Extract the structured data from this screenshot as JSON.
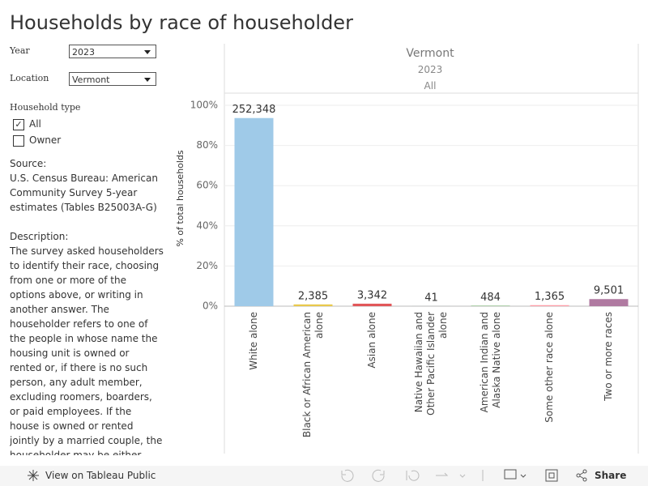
{
  "header": {
    "title": "Households by race of householder"
  },
  "filters": {
    "year_label": "Year",
    "year_value": "2023",
    "location_label": "Location",
    "location_value": "Vermont",
    "household_type_label": "Household type",
    "options": [
      "All",
      "Owner"
    ]
  },
  "source": {
    "label": "Source:",
    "text": "U.S. Census Bureau: American Community Survey 5-year estimates (Tables B25003A-G)"
  },
  "description": {
    "label": "Description:",
    "text": "The survey asked householders to identify their race, choosing from one or more of the options above, or writing in another answer. The householder refers to one of the people in whose name the housing unit is owned or rented or, if there is no such person, any adult member, excluding roomers, boarders, or paid employees. If the house is owned or rented jointly by a married couple, the householder may be either partner. Since there is only one householder"
  },
  "chart_data": {
    "type": "bar",
    "header": [
      "Vermont",
      "2023",
      "All"
    ],
    "y_label": "% of total households",
    "categories": [
      "White alone",
      "Black or African American alone",
      "Asian alone",
      "Native Hawaiian and Other Pacific Islander alone",
      "American Indian and Alaska Native alone",
      "Some other race alone",
      "Two or more races"
    ],
    "values": [
      93.65,
      0.89,
      1.24,
      0.02,
      0.18,
      0.51,
      3.53
    ],
    "count_labels": [
      "252,348",
      "2,385",
      "3,342",
      "41",
      "484",
      "1,365",
      "9,501"
    ],
    "colors": [
      "#9fcae8",
      "#e9c84c",
      "#e15759",
      "#76b7b2",
      "#59a14f",
      "#ff9da7",
      "#b07aa1"
    ],
    "ylim": [
      0,
      100
    ],
    "yticks": [
      {
        "value": 0,
        "label": "0%"
      },
      {
        "value": 20,
        "label": "20%"
      },
      {
        "value": 40,
        "label": "40%"
      },
      {
        "value": 60,
        "label": "60%"
      },
      {
        "value": 80,
        "label": "80%"
      },
      {
        "value": 100,
        "label": "100%"
      }
    ],
    "grid": true
  },
  "toolbar": {
    "view_link": "View on Tableau Public",
    "share": "Share"
  }
}
